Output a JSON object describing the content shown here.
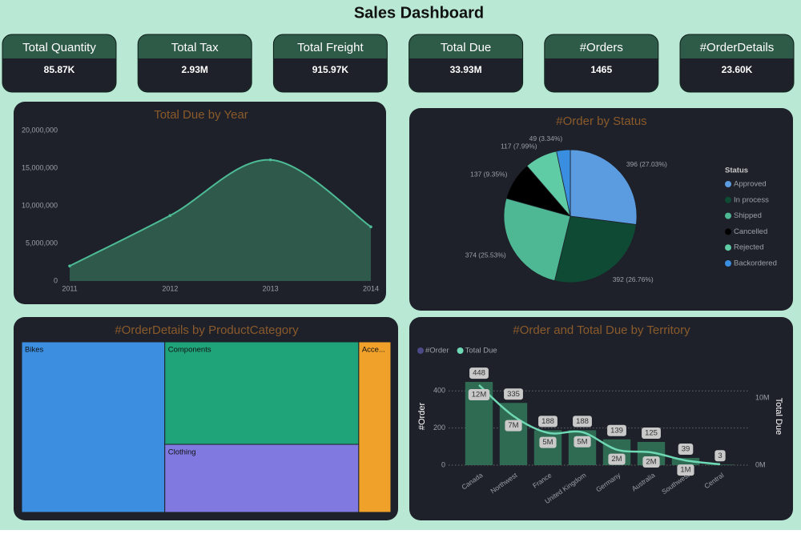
{
  "title": "Sales Dashboard",
  "kpis": [
    {
      "label": "Total Quantity",
      "value": "85.87K"
    },
    {
      "label": "Total Tax",
      "value": "2.93M"
    },
    {
      "label": "Total Freight",
      "value": "915.97K"
    },
    {
      "label": "Total Due",
      "value": "33.93M"
    },
    {
      "label": "#Orders",
      "value": "1465"
    },
    {
      "label": "#OrderDetails",
      "value": "23.60K"
    }
  ],
  "chart_data": [
    {
      "type": "area",
      "title": "Total Due by Year",
      "x": [
        2011,
        2012,
        2013,
        2014
      ],
      "values": [
        2000000,
        8700000,
        16100000,
        7200000
      ],
      "color": "#4dbb96",
      "fill": "#2f5a4b",
      "xlim": [
        2011,
        2014
      ],
      "xticks": [
        2011,
        2012,
        2013,
        2014
      ],
      "ylim": [
        0,
        20000000
      ],
      "yticks": [
        0,
        {
          "value": 5000000,
          "label": "5,000,000"
        },
        {
          "value": 10000000,
          "label": "10,000,000"
        },
        {
          "value": 15000000,
          "label": "15,000,000"
        },
        {
          "value": 20000000,
          "label": "20,000,000"
        }
      ]
    },
    {
      "type": "pie",
      "title": "#Order by Status",
      "legend_title": "Status",
      "categories": [
        "Approved",
        "In process",
        "Shipped",
        "Cancelled",
        "Rejected",
        "Backordered"
      ],
      "values": [
        396,
        392,
        374,
        137,
        117,
        49
      ],
      "value_labels": [
        "396 (27.03%)",
        "392 (26.76%)",
        "374 (25.53%)",
        "137 (9.35%)",
        "117 (7.99%)",
        "49 (3.34%)"
      ],
      "colors": [
        "#5b9bdf",
        "#0f4a35",
        "#4db893",
        "#000000",
        "#5fcca5",
        "#3a8ee0"
      ],
      "legend": "right"
    },
    {
      "type": "treemap",
      "title": "#OrderDetails by ProductCategory",
      "categories": [
        "Bikes",
        "Components",
        "Clothing",
        "Acce..."
      ],
      "values": [
        9150,
        7450,
        4945,
        2055
      ],
      "colors": [
        "#3b8ee0",
        "#1fa378",
        "#8079e0",
        "#f0a12a"
      ]
    },
    {
      "type": "combo",
      "title": "#Order and Total Due by Territory",
      "categories": [
        "Canada",
        "Northwest",
        "France",
        "United Kingdom",
        "Germany",
        "Australia",
        "Southwest",
        "Central"
      ],
      "series": [
        {
          "name": "#Order",
          "kind": "bar",
          "color": "#2f6b52",
          "legend_color": "#4b4a86",
          "values": [
            448,
            335,
            188,
            188,
            139,
            125,
            39,
            3
          ]
        },
        {
          "name": "Total Due",
          "kind": "line",
          "axis": "y2",
          "color": "#6fd8b4",
          "values": [
            11900000,
            7300000,
            4800000,
            4900000,
            2300000,
            1900000,
            700000,
            130000
          ],
          "value_labels": [
            "12M",
            "7M",
            "5M",
            "5M",
            "2M",
            "2M",
            "1M",
            null
          ]
        }
      ],
      "ylabel": "#Order",
      "y2label": "Total Due",
      "ylim": [
        0,
        500
      ],
      "yticks": [
        0,
        200,
        400
      ],
      "y2lim": [
        0,
        13800000
      ],
      "y2ticks": [
        {
          "value": 0,
          "label": "0M"
        },
        {
          "value": 10000000,
          "label": "10M"
        }
      ],
      "grid": true,
      "legend": "top-left"
    }
  ]
}
